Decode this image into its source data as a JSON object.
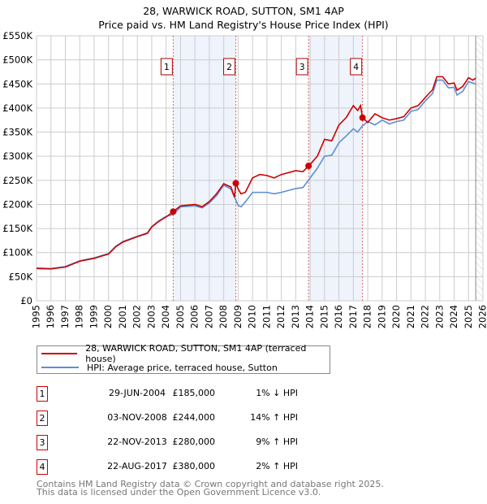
{
  "chart_data": {
    "type": "line",
    "title": "28, WARWICK ROAD, SUTTON, SM1 4AP",
    "subtitle": "Price paid vs. HM Land Registry's House Price Index (HPI)",
    "xlim": [
      1995,
      2026
    ],
    "ylim": [
      0,
      550000
    ],
    "y_ticks": [
      0,
      50000,
      100000,
      150000,
      200000,
      250000,
      300000,
      350000,
      400000,
      450000,
      500000,
      550000
    ],
    "y_tick_labels": [
      "£0",
      "£50K",
      "£100K",
      "£150K",
      "£200K",
      "£250K",
      "£300K",
      "£350K",
      "£400K",
      "£450K",
      "£500K",
      "£550K"
    ],
    "x_ticks": [
      1995,
      1996,
      1997,
      1998,
      1999,
      2000,
      2001,
      2002,
      2003,
      2004,
      2005,
      2006,
      2007,
      2008,
      2009,
      2010,
      2011,
      2012,
      2013,
      2014,
      2015,
      2016,
      2017,
      2018,
      2019,
      2020,
      2021,
      2022,
      2023,
      2024,
      2025,
      2026
    ],
    "grid": true,
    "forecast_hatch_from": 2025.5,
    "series": [
      {
        "name": "28, WARWICK ROAD, SUTTON, SM1 4AP (terraced house)",
        "color": "#cc0000",
        "x": [
          1995,
          1996,
          1997,
          1998,
          1999,
          2000,
          2000.5,
          2001,
          2002,
          2002.7,
          2003,
          2003.5,
          2004,
          2004.49,
          2005,
          2006,
          2006.5,
          2007,
          2007.5,
          2008,
          2008.5,
          2008.75,
          2008.84,
          2009,
          2009.2,
          2009.5,
          2010,
          2010.5,
          2011,
          2011.5,
          2012,
          2013,
          2013.5,
          2013.89,
          2014,
          2014.5,
          2015,
          2015.5,
          2016,
          2016.5,
          2017,
          2017.3,
          2017.5,
          2017.64,
          2018,
          2018.5,
          2019,
          2019.5,
          2020,
          2020.5,
          2021,
          2021.5,
          2022,
          2022.5,
          2022.8,
          2023.2,
          2023.6,
          2024,
          2024.2,
          2024.6,
          2025,
          2025.3,
          2025.5
        ],
        "values": [
          67000,
          66000,
          70000,
          82000,
          88000,
          97000,
          112000,
          122000,
          133000,
          140000,
          153000,
          165000,
          174000,
          185000,
          197000,
          200000,
          195000,
          206000,
          222000,
          243000,
          236000,
          215000,
          244000,
          232000,
          222000,
          225000,
          255000,
          262000,
          260000,
          255000,
          262000,
          270000,
          268000,
          280000,
          283000,
          300000,
          335000,
          332000,
          365000,
          380000,
          405000,
          395000,
          405000,
          380000,
          370000,
          388000,
          380000,
          375000,
          378000,
          382000,
          400000,
          405000,
          422000,
          438000,
          465000,
          465000,
          450000,
          452000,
          437000,
          445000,
          463000,
          458000,
          462000
        ]
      },
      {
        "name": "HPI: Average price, terraced house, Sutton",
        "color": "#5b8fd4",
        "x": [
          1995,
          1996,
          1997,
          1998,
          1999,
          2000,
          2000.5,
          2001,
          2002,
          2002.7,
          2003,
          2003.5,
          2004,
          2004.5,
          2005,
          2006,
          2006.5,
          2007,
          2007.5,
          2008,
          2008.5,
          2009,
          2009.2,
          2009.5,
          2010,
          2011,
          2011.5,
          2012,
          2013,
          2013.5,
          2014,
          2014.5,
          2015,
          2015.5,
          2016,
          2016.5,
          2017,
          2017.3,
          2017.6,
          2018,
          2018.5,
          2019,
          2019.5,
          2020,
          2020.5,
          2021,
          2021.5,
          2022,
          2022.5,
          2022.8,
          2023.2,
          2023.6,
          2024,
          2024.2,
          2024.6,
          2025,
          2025.3,
          2025.5
        ],
        "values": [
          68000,
          67000,
          71000,
          83000,
          89000,
          98000,
          113000,
          123000,
          134000,
          141000,
          154000,
          166000,
          175000,
          179000,
          195000,
          197000,
          193000,
          203000,
          218000,
          240000,
          232000,
          198000,
          195000,
          205000,
          225000,
          225000,
          222000,
          225000,
          233000,
          235000,
          255000,
          275000,
          300000,
          302000,
          328000,
          342000,
          357000,
          350000,
          362000,
          372000,
          365000,
          375000,
          367000,
          372000,
          375000,
          393000,
          397000,
          415000,
          430000,
          458000,
          458000,
          442000,
          443000,
          427000,
          435000,
          455000,
          452000,
          450000
        ]
      }
    ],
    "sales": [
      {
        "label": "1",
        "x": 2004.49,
        "value": 185000,
        "date": "29-JUN-2004",
        "price": "£185,000",
        "hpi": "1% ↓ HPI"
      },
      {
        "label": "2",
        "x": 2008.84,
        "value": 244000,
        "date": "03-NOV-2008",
        "price": "£244,000",
        "hpi": "14% ↑ HPI"
      },
      {
        "label": "3",
        "x": 2013.89,
        "value": 280000,
        "date": "22-NOV-2013",
        "price": "£280,000",
        "hpi": "9% ↑ HPI"
      },
      {
        "label": "4",
        "x": 2017.64,
        "value": 380000,
        "date": "22-AUG-2017",
        "price": "£380,000",
        "hpi": "2% ↑ HPI"
      }
    ],
    "shaded_ranges": [
      [
        2004.49,
        2008.84
      ],
      [
        2013.89,
        2017.64
      ]
    ]
  },
  "legend": {
    "property": "28, WARWICK ROAD, SUTTON, SM1 4AP (terraced house)",
    "hpi": "HPI: Average price, terraced house, Sutton"
  },
  "footer": {
    "line1": "Contains HM Land Registry data © Crown copyright and database right 2025.",
    "line2": "This data is licensed under the Open Government Licence v3.0."
  }
}
